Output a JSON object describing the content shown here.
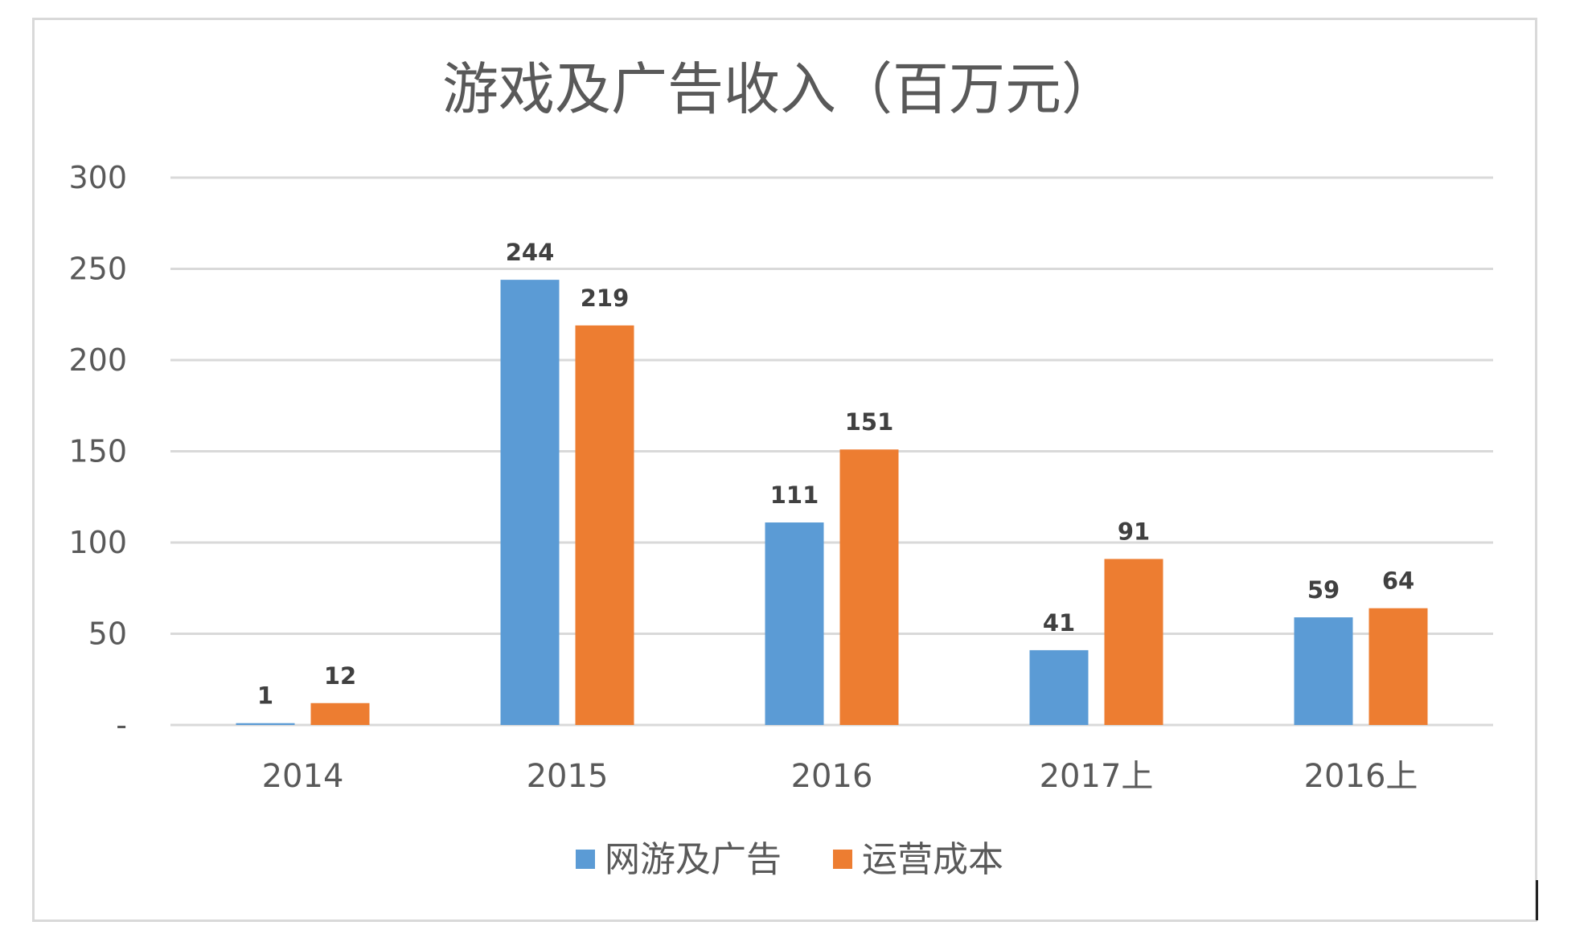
{
  "chart_data": {
    "type": "bar",
    "title": "游戏及广告收入（百万元）",
    "xlabel": "",
    "ylabel": "",
    "categories": [
      "2014",
      "2015",
      "2016",
      "2017上",
      "2016上"
    ],
    "series": [
      {
        "name": "网游及广告",
        "values": [
          1,
          244,
          111,
          41,
          59
        ],
        "color": "#5b9bd5"
      },
      {
        "name": "运营成本",
        "values": [
          12,
          219,
          151,
          91,
          64
        ],
        "color": "#ed7d31"
      }
    ],
    "ylim": [
      0,
      300
    ],
    "yticks": [
      0,
      50,
      100,
      150,
      200,
      250,
      300
    ],
    "ytick_labels": [
      "-",
      "50",
      "100",
      "150",
      "200",
      "250",
      "300"
    ],
    "grid": true,
    "legend": "bottom",
    "data_labels": true
  }
}
